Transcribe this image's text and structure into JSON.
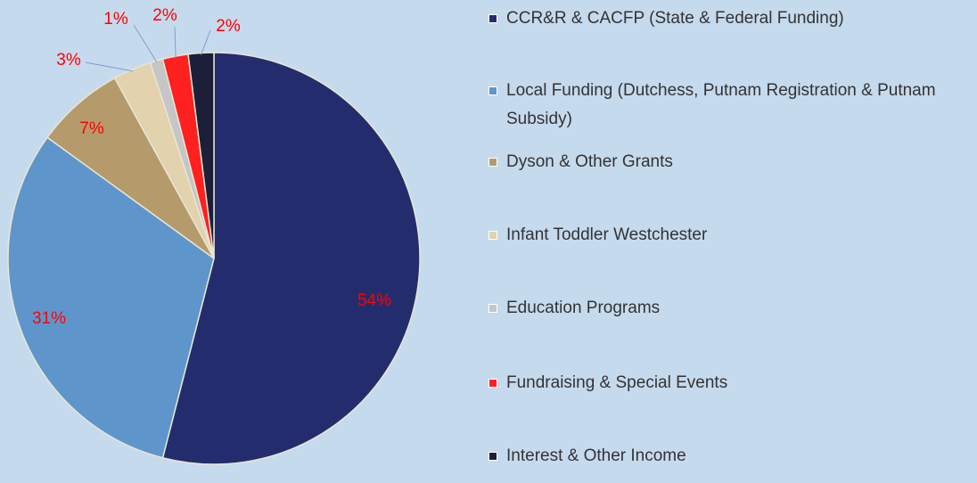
{
  "chart_data": {
    "type": "pie",
    "categories": [
      "CCR&R & CACFP (State & Federal Funding)",
      "Local Funding (Dutchess, Putnam Registration & Putnam Subsidy)",
      "Dyson & Other Grants",
      "Infant Toddler Westchester",
      "Education Programs",
      "Fundraising & Special Events",
      "Interest & Other Income"
    ],
    "values": [
      54,
      31,
      7,
      3,
      1,
      2,
      2
    ],
    "value_labels": [
      "54%",
      "31%",
      "7%",
      "3%",
      "1%",
      "2%",
      "2%"
    ],
    "colors": [
      "#232d6e",
      "#5e96cc",
      "#b59b6c",
      "#e2d2ad",
      "#c6c6c6",
      "#ff2020",
      "#1b2038"
    ],
    "label_color": "#ff0000",
    "legend": "right"
  }
}
